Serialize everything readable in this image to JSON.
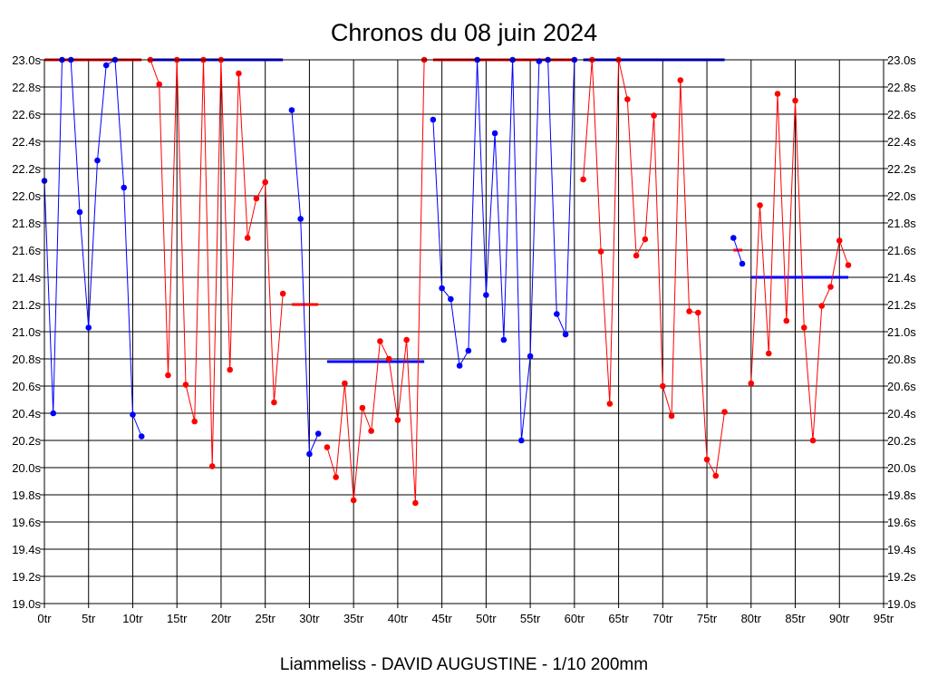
{
  "chart_data": {
    "type": "line",
    "title": "Chronos du 08 juin 2024",
    "subtitle": "Liammeliss - DAVID AUGUSTINE - 1/10 200mm",
    "xlabel": "",
    "ylabel": "",
    "grid": true,
    "xlim": [
      0,
      95
    ],
    "ylim": [
      19.0,
      23.0
    ],
    "x_ticks": [
      "0tr",
      "5tr",
      "10tr",
      "15tr",
      "20tr",
      "25tr",
      "30tr",
      "35tr",
      "40tr",
      "45tr",
      "50tr",
      "55tr",
      "60tr",
      "65tr",
      "70tr",
      "75tr",
      "80tr",
      "85tr",
      "90tr",
      "95tr"
    ],
    "y_ticks": [
      "19.0s",
      "19.2s",
      "19.4s",
      "19.6s",
      "19.8s",
      "20.0s",
      "20.2s",
      "20.4s",
      "20.6s",
      "20.8s",
      "21.0s",
      "21.2s",
      "21.4s",
      "21.6s",
      "21.8s",
      "22.0s",
      "22.2s",
      "22.4s",
      "22.6s",
      "22.8s",
      "23.0s"
    ],
    "colors": {
      "blue": "#0000ff",
      "red": "#ff0000",
      "grid": "#000000"
    },
    "series": [
      {
        "name": "stint-1",
        "color": "blue",
        "x": [
          0,
          1,
          2,
          3,
          4,
          5,
          6,
          7,
          8,
          9,
          10,
          11
        ],
        "y": [
          22.11,
          20.4,
          23.0,
          23.0,
          21.88,
          21.03,
          22.26,
          22.96,
          23.0,
          22.06,
          20.39,
          20.23
        ]
      },
      {
        "name": "stint-2",
        "color": "red",
        "x": [
          12,
          13,
          14,
          15,
          16,
          17,
          18,
          19,
          20,
          21,
          22,
          23,
          24,
          25,
          26,
          27
        ],
        "y": [
          23.0,
          22.82,
          20.68,
          23.0,
          20.61,
          20.34,
          23.0,
          20.01,
          23.0,
          20.72,
          22.9,
          21.69,
          21.98,
          22.1,
          20.48,
          21.28
        ]
      },
      {
        "name": "stint-3",
        "color": "blue",
        "x": [
          28,
          29,
          30,
          31
        ],
        "y": [
          22.63,
          21.83,
          20.1,
          20.25
        ]
      },
      {
        "name": "stint-4",
        "color": "red",
        "x": [
          32,
          33,
          34,
          35,
          36,
          37,
          38,
          39,
          40,
          41,
          42,
          43
        ],
        "y": [
          20.15,
          19.93,
          20.62,
          19.76,
          20.44,
          20.27,
          20.93,
          20.8,
          20.35,
          20.94,
          19.74,
          23.0
        ]
      },
      {
        "name": "stint-5",
        "color": "blue",
        "x": [
          44,
          45,
          46,
          47,
          48,
          49,
          50,
          51,
          52,
          53,
          54,
          55,
          56,
          57,
          58,
          59,
          60
        ],
        "y": [
          22.56,
          21.32,
          21.24,
          20.75,
          20.86,
          23.0,
          21.27,
          22.46,
          20.94,
          23.0,
          20.2,
          20.82,
          22.99,
          23.0,
          21.13,
          20.98,
          23.0
        ]
      },
      {
        "name": "stint-6",
        "color": "red",
        "x": [
          61,
          62,
          63,
          64,
          65,
          66,
          67,
          68,
          69,
          70,
          71,
          72,
          73,
          74,
          75,
          76,
          77
        ],
        "y": [
          22.12,
          23.0,
          21.59,
          20.47,
          23.0,
          22.71,
          21.56,
          21.68,
          22.59,
          20.6,
          20.38,
          22.85,
          21.15,
          21.14,
          20.06,
          19.94,
          20.41
        ]
      },
      {
        "name": "stint-7",
        "color": "blue",
        "x": [
          78,
          79
        ],
        "y": [
          21.69,
          21.5
        ]
      },
      {
        "name": "stint-8",
        "color": "red",
        "x": [
          80,
          81,
          82,
          83,
          84,
          85,
          86,
          87,
          88,
          89,
          90,
          91
        ],
        "y": [
          20.62,
          21.93,
          20.84,
          22.75,
          21.08,
          22.7,
          21.03,
          20.2,
          21.19,
          21.33,
          21.67,
          21.49
        ]
      }
    ],
    "averages": [
      {
        "color": "red",
        "x_start": 0,
        "x_end": 11,
        "y": 23.0
      },
      {
        "color": "blue",
        "x_start": 12,
        "x_end": 27,
        "y": 23.0
      },
      {
        "color": "red",
        "x_start": 28,
        "x_end": 31,
        "y": 21.2
      },
      {
        "color": "blue",
        "x_start": 32,
        "x_end": 43,
        "y": 20.78
      },
      {
        "color": "red",
        "x_start": 44,
        "x_end": 60,
        "y": 23.0
      },
      {
        "color": "blue",
        "x_start": 61,
        "x_end": 77,
        "y": 23.0
      },
      {
        "color": "red",
        "x_start": 78,
        "x_end": 79,
        "y": 21.6
      },
      {
        "color": "blue",
        "x_start": 80,
        "x_end": 91,
        "y": 21.4
      }
    ]
  }
}
